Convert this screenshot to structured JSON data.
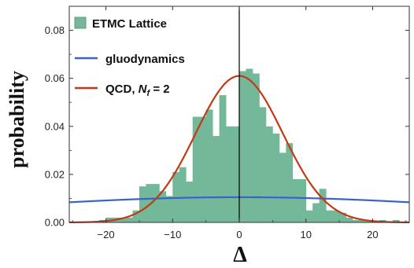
{
  "chart_data": {
    "type": "bar",
    "xlabel": "Δ",
    "ylabel": "probability",
    "xlim": [
      -25.5,
      25.5
    ],
    "ylim": [
      0,
      0.09
    ],
    "xticks": [
      -20,
      -10,
      0,
      10,
      20
    ],
    "xtick_labels": [
      "−20",
      "−10",
      "0",
      "10",
      "20"
    ],
    "yticks": [
      0.0,
      0.02,
      0.04,
      0.06,
      0.08
    ],
    "ytick_labels": [
      "0.00",
      "0.02",
      "0.04",
      "0.06",
      "0.08"
    ],
    "grid": false,
    "legend_position": "top-left",
    "legend": [
      {
        "label": "ETMC Lattice",
        "kind": "bar",
        "color": "#74b89a"
      },
      {
        "label": "gluodynamics",
        "kind": "line",
        "color": "#3a62c9"
      },
      {
        "label_main": "QCD, ",
        "label_italic": "N",
        "label_sub": "f",
        "label_tail": " = 2",
        "kind": "line",
        "color": "#c03a18"
      }
    ],
    "histogram": {
      "name": "ETMC Lattice",
      "color": "#74b89a",
      "bin_width": 1,
      "bin_left_edges": [
        -25,
        -24,
        -23,
        -22,
        -21,
        -20,
        -19,
        -18,
        -17,
        -16,
        -15,
        -14,
        -13,
        -12,
        -11,
        -10,
        -9,
        -8,
        -7,
        -6,
        -5,
        -4,
        -3,
        -2,
        -1,
        0,
        1,
        2,
        3,
        4,
        5,
        6,
        7,
        8,
        9,
        10,
        11,
        12,
        13,
        14,
        15,
        16,
        17,
        18,
        19,
        20,
        21,
        22,
        23,
        24
      ],
      "values": [
        0.0,
        0.0,
        0.0,
        0.0,
        0.001,
        0.002,
        0.002,
        0.002,
        0.002,
        0.005,
        0.015,
        0.016,
        0.016,
        0.013,
        0.011,
        0.021,
        0.023,
        0.017,
        0.044,
        0.044,
        0.047,
        0.036,
        0.053,
        0.04,
        0.04,
        0.063,
        0.064,
        0.062,
        0.048,
        0.04,
        0.037,
        0.029,
        0.033,
        0.018,
        0.018,
        0.005,
        0.008,
        0.014,
        0.005,
        0.005,
        0.004,
        0.002,
        0.001,
        0.001,
        0.001,
        0.0,
        0.001,
        0.0,
        0.001,
        0.0
      ]
    },
    "curves": [
      {
        "name": "gluodynamics",
        "color": "#3a62c9",
        "shape": "gaussian",
        "mean": 0,
        "sigma": 38,
        "amplitude": 0.0105
      },
      {
        "name": "QCD, Nf = 2",
        "color": "#c03a18",
        "shape": "gaussian",
        "mean": 0,
        "sigma": 6.55,
        "amplitude": 0.061
      }
    ],
    "reference_line": {
      "x": 0,
      "color": "#000000"
    }
  }
}
